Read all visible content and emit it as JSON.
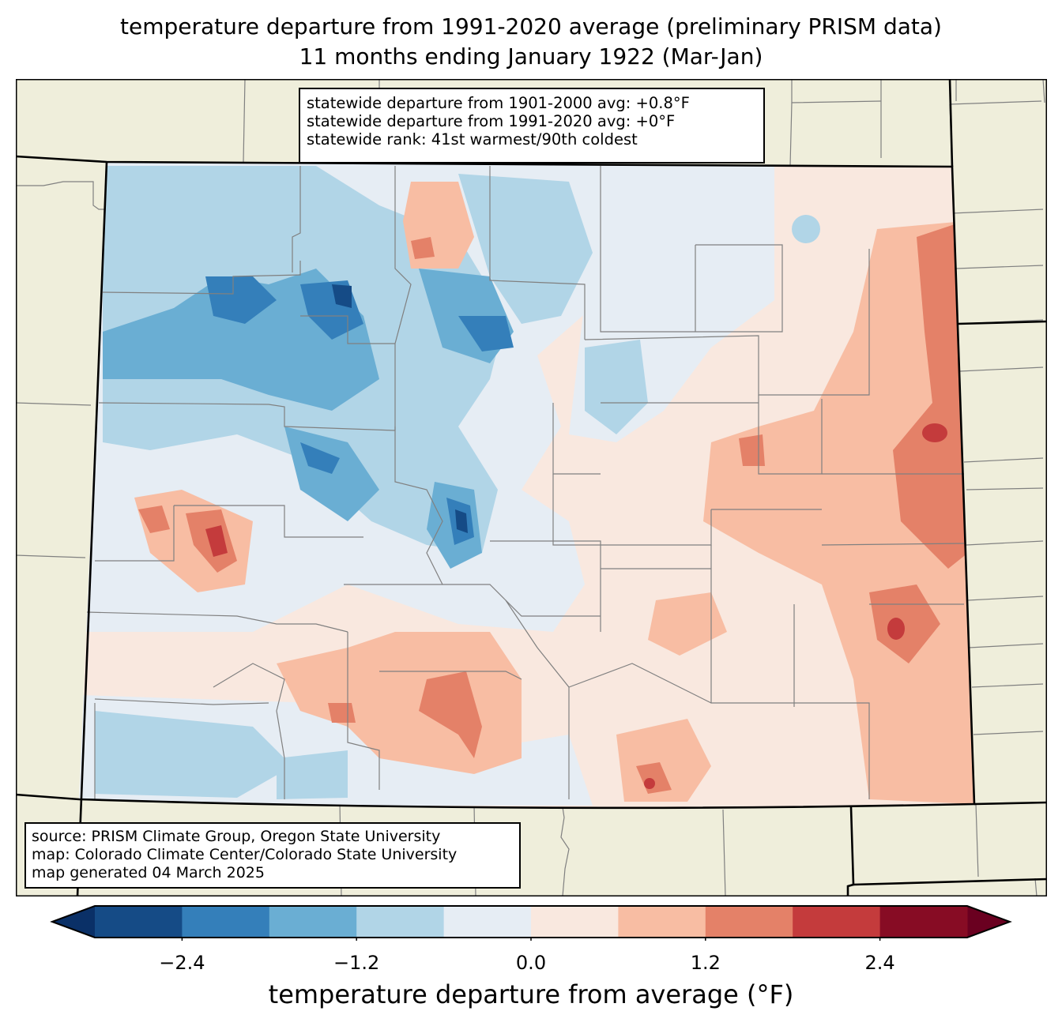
{
  "title": {
    "line1": "temperature departure from 1991-2020 average (preliminary PRISM data)",
    "line2": "11 months ending January 1922 (Mar-Jan)"
  },
  "stats_box": {
    "line1": "statewide departure from 1901-2000 avg: +0.8°F",
    "line2": "statewide departure from 1991-2020 avg: +0°F",
    "line3": "statewide rank: 41st warmest/90th coldest"
  },
  "source_box": {
    "line1": "source: PRISM Climate Group, Oregon State University",
    "line2": "map: Colorado Climate Center/Colorado State University",
    "line3": "map generated 04 March 2025"
  },
  "colorbar": {
    "label": "temperature departure from average (°F)",
    "ticks": [
      "−2.4",
      "−1.2",
      "0.0",
      "1.2",
      "2.4"
    ],
    "tick_values": [
      -2.4,
      -1.2,
      0.0,
      1.2,
      2.4
    ],
    "levels": [
      -3.0,
      -2.4,
      -1.8,
      -1.2,
      -0.6,
      0.0,
      0.6,
      1.2,
      1.8,
      2.4,
      3.0
    ],
    "colors": [
      "#154b86",
      "#347fba",
      "#6aaed3",
      "#b1d5e7",
      "#e6edf4",
      "#f9e8df",
      "#f8bda3",
      "#e48168",
      "#c43b3c",
      "#870c24"
    ],
    "under_color": "#0a3067",
    "over_color": "#6a0020",
    "extend": "both"
  },
  "map": {
    "land_color": "#efeedb",
    "state_border_color": "#000000",
    "county_border_color": "#808080"
  }
}
